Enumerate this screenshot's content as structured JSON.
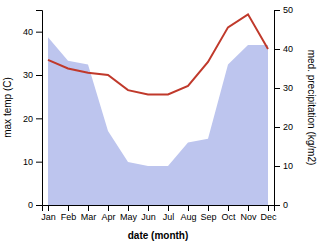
{
  "chart_data": {
    "type": "line",
    "categories": [
      "Jan",
      "Feb",
      "Mar",
      "Apr",
      "May",
      "Jun",
      "Jul",
      "Aug",
      "Sep",
      "Oct",
      "Nov",
      "Dec"
    ],
    "xlabel": "date (month)",
    "ylabel": "max temp (C)",
    "y2label": "med. precipitation (kg/m2)",
    "series": [
      {
        "type": "area",
        "axis": "y2",
        "color": "#bdc5ee",
        "values": [
          43,
          37,
          36,
          19,
          11,
          10,
          10,
          16,
          17,
          36,
          41,
          41
        ]
      },
      {
        "type": "line",
        "color": "#c0392b",
        "values": [
          33.5,
          31.5,
          30.5,
          30.0,
          26.5,
          25.5,
          25.5,
          27.5,
          33.0,
          41.0,
          44.0,
          36.0
        ]
      }
    ],
    "ylim": [
      0,
      45
    ],
    "yticks": [
      0,
      10,
      20,
      30,
      40
    ],
    "y2lim": [
      0,
      50
    ],
    "y2ticks": [
      0,
      10,
      20,
      30,
      40,
      50
    ],
    "grid": false
  }
}
